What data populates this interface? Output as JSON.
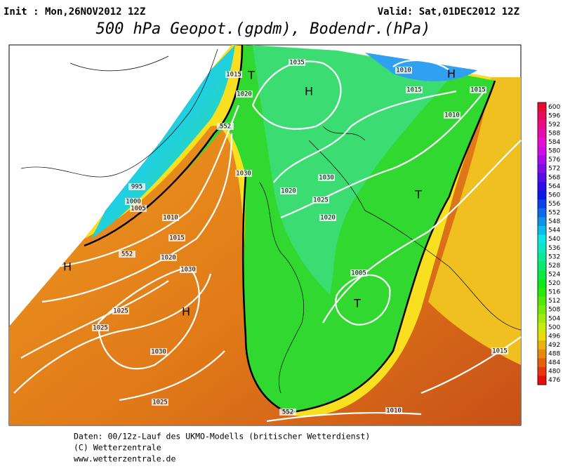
{
  "header": {
    "init": "Init : Mon,26NOV2012 12Z",
    "valid": "Valid: Sat,01DEC2012 12Z",
    "title": "500 hPa Geopot.(gpdm), Bodendr.(hPa)"
  },
  "isobar_labels": [
    1015,
    1020,
    1035,
    1010,
    1015,
    1015,
    1010,
    1030,
    1030,
    1020,
    1025,
    1020,
    995,
    1000,
    1005,
    1010,
    1015,
    1020,
    1030,
    1025,
    1025,
    1030,
    1025,
    1005,
    1015,
    1010,
    552,
    552,
    552
  ],
  "markers": [
    "H",
    "H",
    "H",
    "H",
    "T",
    "T",
    "T"
  ],
  "colorbar": [
    600,
    596,
    592,
    588,
    584,
    580,
    576,
    572,
    568,
    564,
    560,
    556,
    552,
    548,
    544,
    540,
    536,
    532,
    528,
    524,
    520,
    516,
    512,
    508,
    504,
    500,
    496,
    492,
    488,
    484,
    480,
    476
  ],
  "footer": [
    "Daten: 00/12z-Lauf des UKMO-Modells (britischer Wetterdienst)",
    "(C) Wetterzentrale",
    "www.wetterzentrale.de"
  ]
}
